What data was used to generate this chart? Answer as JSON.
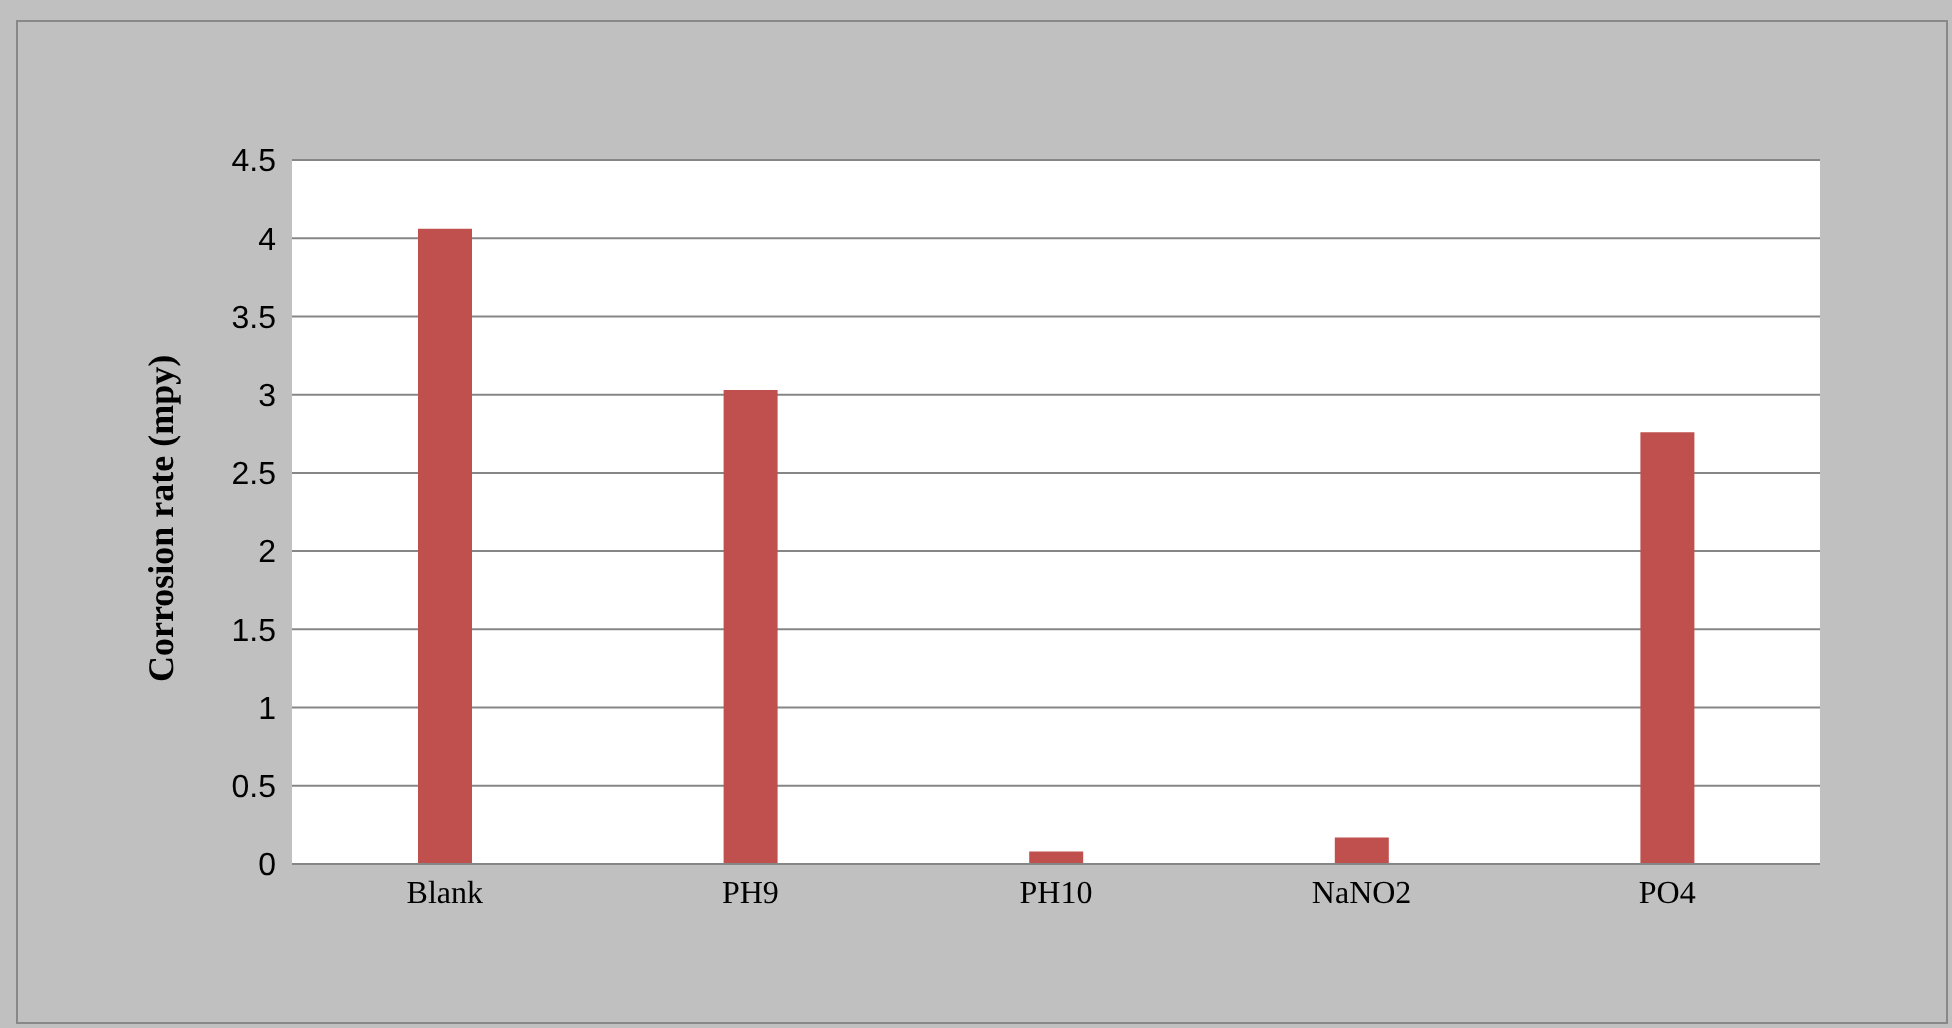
{
  "chart_data": {
    "type": "bar",
    "ylabel": "Corrosion rate (mpy)",
    "categories": [
      "Blank",
      "PH9",
      "PH10",
      "NaNO2",
      "PO4"
    ],
    "series": [
      {
        "color": "#c0504d",
        "values": [
          4.06,
          3.03,
          0.08,
          0.17,
          2.76
        ]
      }
    ],
    "ylim": [
      0,
      4.5
    ],
    "yticks": [
      0,
      0.5,
      1,
      1.5,
      2,
      2.5,
      3,
      3.5,
      4,
      4.5
    ],
    "grid": "y",
    "legend": false
  }
}
